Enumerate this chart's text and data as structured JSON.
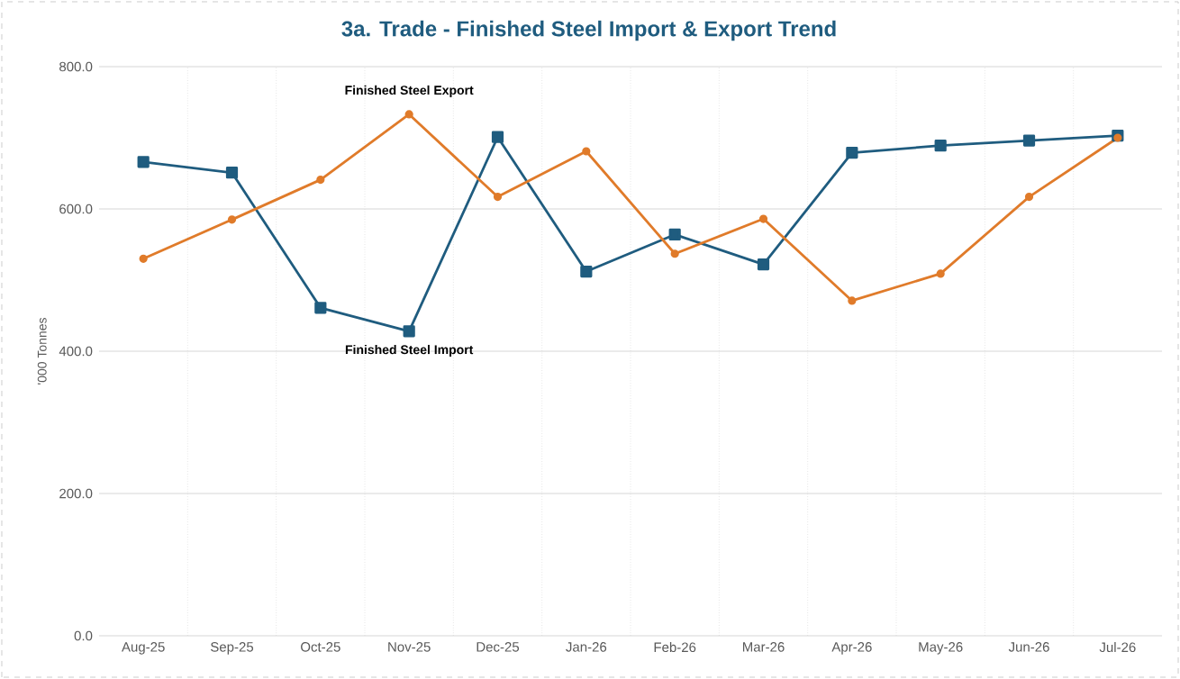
{
  "chart_data": {
    "type": "line",
    "title": "3a. Trade -  Finished Steel Import & Export Trend",
    "ylabel": "'000 Tonnes",
    "categories": [
      "Aug-25",
      "Sep-25",
      "Oct-25",
      "Nov-25",
      "Dec-25",
      "Jan-26",
      "Feb-26",
      "Mar-26",
      "Apr-26",
      "May-26",
      "Jun-26",
      "Jul-26"
    ],
    "series": [
      {
        "name": "Finished Steel Import",
        "color": "#1f5c7f",
        "marker": "square",
        "values": [
          666,
          651,
          461,
          428,
          701,
          512,
          564,
          522,
          679,
          689,
          696,
          703
        ]
      },
      {
        "name": "Finished Steel Export",
        "color": "#e07b2a",
        "marker": "circle",
        "values": [
          530,
          585,
          641,
          733,
          617,
          681,
          537,
          586,
          471,
          509,
          617,
          700
        ]
      }
    ],
    "ylim": [
      0,
      800
    ],
    "yticks": [
      {
        "value": 0,
        "label": "0.0"
      },
      {
        "value": 200,
        "label": "200.0"
      },
      {
        "value": 400,
        "label": "400.0"
      },
      {
        "value": 600,
        "label": "600.0"
      },
      {
        "value": 800,
        "label": "800.0"
      }
    ],
    "grid": true,
    "legend": false,
    "line_style": "solid"
  }
}
